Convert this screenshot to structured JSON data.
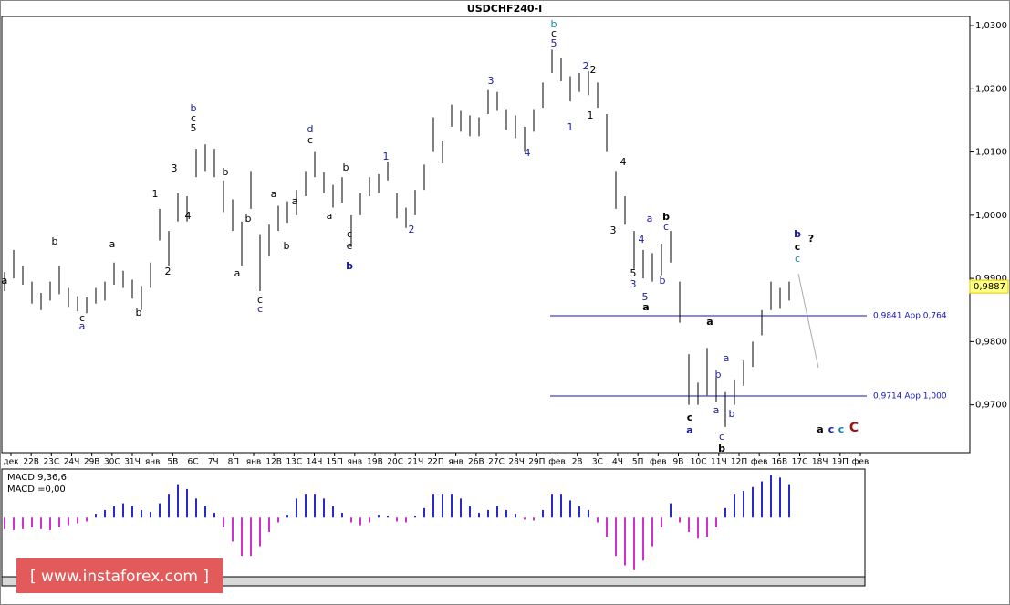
{
  "chart_data": [
    {
      "type": "ohlc",
      "title": "USDCHF240-I",
      "categories": [
        "дек",
        "22В",
        "23С",
        "24Ч",
        "29В",
        "30С",
        "31Ч",
        "янв",
        "5В",
        "6С",
        "7Ч",
        "8П",
        "янв",
        "12В",
        "13С",
        "14Ч",
        "15П",
        "янв",
        "19В",
        "20С",
        "21Ч",
        "22П",
        "янв",
        "26В",
        "27С",
        "28Ч",
        "29П",
        "фев",
        "2В",
        "3С",
        "4Ч",
        "5П",
        "фев",
        "9В",
        "10С",
        "11Ч",
        "12П",
        "фев",
        "16В",
        "17С",
        "18Ч",
        "19П",
        "фев"
      ],
      "high": [
        0.991,
        0.9945,
        0.992,
        0.9895,
        0.9877,
        0.9895,
        0.992,
        0.9885,
        0.9872,
        0.987,
        0.9885,
        0.9895,
        0.9925,
        0.9912,
        0.9898,
        0.9888,
        0.9925,
        1.001,
        0.9975,
        1.0035,
        1.003,
        1.0105,
        1.0112,
        1.0105,
        1.0055,
        1.0025,
        0.999,
        1.007,
        0.997,
        0.9985,
        1.0015,
        1.0022,
        1.004,
        1.007,
        1.01,
        1.0068,
        1.0048,
        1.006,
        1.0,
        1.0035,
        1.006,
        1.0065,
        1.0085,
        1.0035,
        1.0012,
        1.004,
        1.008,
        1.0155,
        1.0118,
        1.0175,
        1.0165,
        1.0158,
        1.0155,
        1.0198,
        1.0195,
        1.0168,
        1.0158,
        1.014,
        1.0168,
        1.021,
        1.0262,
        1.0248,
        1.022,
        1.0225,
        1.0228,
        1.021,
        1.016,
        1.007,
        1.003,
        0.9975,
        0.9945,
        0.994,
        0.9955,
        0.9975,
        0.9895,
        0.978,
        0.9735,
        0.979,
        0.9755,
        0.972,
        0.974,
        0.977,
        0.98,
        0.985,
        0.9895,
        0.9885,
        0.9895
      ],
      "low": [
        0.988,
        0.99,
        0.989,
        0.986,
        0.985,
        0.9865,
        0.9875,
        0.9855,
        0.9848,
        0.9845,
        0.986,
        0.9865,
        0.989,
        0.9885,
        0.9868,
        0.985,
        0.9885,
        0.996,
        0.992,
        0.999,
        0.999,
        1.006,
        1.007,
        1.006,
        1.0005,
        0.9975,
        0.992,
        1.001,
        0.988,
        0.9935,
        0.9975,
        0.9988,
        1.0,
        1.003,
        1.006,
        1.0035,
        1.0012,
        1.002,
        0.995,
        1.0,
        1.003,
        1.0035,
        1.0055,
        0.9995,
        0.998,
        1.0,
        1.004,
        1.01,
        1.0082,
        1.014,
        1.0132,
        1.0125,
        1.0125,
        1.016,
        1.0165,
        1.0135,
        1.0122,
        1.01,
        1.0132,
        1.017,
        1.0225,
        1.0212,
        1.018,
        1.0195,
        1.019,
        1.017,
        1.01,
        1.001,
        0.9985,
        0.9915,
        0.99,
        0.9895,
        0.9905,
        0.9925,
        0.983,
        0.97,
        0.97,
        0.9715,
        0.9705,
        0.9665,
        0.97,
        0.973,
        0.976,
        0.981,
        0.985,
        0.9852,
        0.9865
      ],
      "color": "#000000",
      "ylim": [
        0.96244,
        1.03145
      ],
      "yticks": [
        {
          "value": 0.97,
          "label": "0,9700"
        },
        {
          "value": 0.98,
          "label": "0,9800"
        },
        {
          "value": 0.99,
          "label": "0,9900"
        },
        {
          "value": 1.0,
          "label": "1,0000"
        },
        {
          "value": 1.01,
          "label": "1,0100"
        },
        {
          "value": 1.02,
          "label": "1,0200"
        },
        {
          "value": 1.03,
          "label": "1,0300"
        }
      ],
      "levels": [
        {
          "value": 0.9841,
          "label": "0,9841 Арр 0,764",
          "color": "#1414b4"
        },
        {
          "value": 0.9714,
          "label": "0,9714 Арр 1,000",
          "color": "#1414b4"
        }
      ],
      "last_price": {
        "value": 0.9887,
        "label": "0,9887"
      },
      "annotations": [
        {
          "text": "a",
          "color": "#000000",
          "bold": false
        },
        {
          "text": "c",
          "color": "#000000",
          "bold": false
        },
        {
          "text": "a",
          "color": "#1a1aa0",
          "bold": false
        },
        {
          "text": "b",
          "color": "#000000",
          "bold": false
        },
        {
          "text": "a",
          "color": "#000000",
          "bold": false
        },
        {
          "text": "b",
          "color": "#000000",
          "bold": false
        },
        {
          "text": "1",
          "color": "#000000",
          "bold": false
        },
        {
          "text": "2",
          "color": "#000000",
          "bold": false
        },
        {
          "text": "3",
          "color": "#000000",
          "bold": false
        },
        {
          "text": "4",
          "color": "#000000",
          "bold": false
        },
        {
          "text": "b",
          "color": "#1a1aa0",
          "bold": false
        },
        {
          "text": "c",
          "color": "#000000",
          "bold": false
        },
        {
          "text": "5",
          "color": "#000000",
          "bold": false
        },
        {
          "text": "b",
          "color": "#000000",
          "bold": false
        },
        {
          "text": "a",
          "color": "#000000",
          "bold": false
        },
        {
          "text": "c",
          "color": "#000000",
          "bold": false
        },
        {
          "text": "c",
          "color": "#1a1aa0",
          "bold": false
        },
        {
          "text": "b",
          "color": "#000000",
          "bold": false
        },
        {
          "text": "a",
          "color": "#000000",
          "bold": false
        },
        {
          "text": "b",
          "color": "#000000",
          "bold": false
        },
        {
          "text": "a",
          "color": "#000000",
          "bold": false
        },
        {
          "text": "d",
          "color": "#1a1aa0",
          "bold": false
        },
        {
          "text": "c",
          "color": "#000000",
          "bold": false
        },
        {
          "text": "a",
          "color": "#000000",
          "bold": false
        },
        {
          "text": "b",
          "color": "#000000",
          "bold": false
        },
        {
          "text": "c",
          "color": "#000000",
          "bold": false
        },
        {
          "text": "e",
          "color": "#000000",
          "bold": false
        },
        {
          "text": "b",
          "color": "#1a1aa0",
          "bold": true
        },
        {
          "text": "1",
          "color": "#1a1aa0",
          "bold": false
        },
        {
          "text": "2",
          "color": "#1a1aa0",
          "bold": false
        },
        {
          "text": "3",
          "color": "#1a1aa0",
          "bold": false
        },
        {
          "text": "4",
          "color": "#1a1aa0",
          "bold": false
        },
        {
          "text": "b",
          "color": "#0a86a0",
          "bold": false
        },
        {
          "text": "c",
          "color": "#000000",
          "bold": false
        },
        {
          "text": "5",
          "color": "#1a1aa0",
          "bold": false
        },
        {
          "text": "1",
          "color": "#1a1aa0",
          "bold": false
        },
        {
          "text": "2",
          "color": "#1a1aa0",
          "bold": false
        },
        {
          "text": "2",
          "color": "#000000",
          "bold": false
        },
        {
          "text": "1",
          "color": "#000000",
          "bold": false
        },
        {
          "text": "4",
          "color": "#000000",
          "bold": false
        },
        {
          "text": "3",
          "color": "#000000",
          "bold": false
        },
        {
          "text": "a",
          "color": "#1a1aa0",
          "bold": false
        },
        {
          "text": "b",
          "color": "#000000",
          "bold": true
        },
        {
          "text": "c",
          "color": "#1a1aa0",
          "bold": false
        },
        {
          "text": "4",
          "color": "#1a1aa0",
          "bold": false
        },
        {
          "text": "5",
          "color": "#000000",
          "bold": false
        },
        {
          "text": "3",
          "color": "#1a1aa0",
          "bold": false
        },
        {
          "text": "5",
          "color": "#1a1aa0",
          "bold": false
        },
        {
          "text": "a",
          "color": "#000000",
          "bold": true
        },
        {
          "text": "b",
          "color": "#1a1aa0",
          "bold": false
        },
        {
          "text": "a",
          "color": "#000000",
          "bold": true
        },
        {
          "text": "c",
          "color": "#000000",
          "bold": true
        },
        {
          "text": "a",
          "color": "#1a1aa0",
          "bold": true
        },
        {
          "text": "a",
          "color": "#1a1aa0",
          "bold": false
        },
        {
          "text": "b",
          "color": "#1a1aa0",
          "bold": false
        },
        {
          "text": "a",
          "color": "#1a1aa0",
          "bold": false
        },
        {
          "text": "b",
          "color": "#1a1aa0",
          "bold": false
        },
        {
          "text": "c",
          "color": "#1a1aa0",
          "bold": false
        },
        {
          "text": "b",
          "color": "#000000",
          "bold": true
        },
        {
          "text": "b",
          "color": "#1a1aa0",
          "bold": true
        },
        {
          "text": "c",
          "color": "#000000",
          "bold": true
        },
        {
          "text": "c",
          "color": "#0a86a0",
          "bold": false
        },
        {
          "text": "?",
          "color": "#000000",
          "bold": true
        },
        {
          "text": "a",
          "color": "#000000",
          "bold": true
        },
        {
          "text": "c",
          "color": "#1a1aa0",
          "bold": true
        },
        {
          "text": "c",
          "color": "#0a86a0",
          "bold": true
        },
        {
          "text": "C",
          "color": "#a01010",
          "bold": true
        }
      ]
    },
    {
      "type": "macd",
      "title": "MACD 9,36,6",
      "subtitle": "MACD =0,00",
      "positive_color": "#2a2ac8",
      "negative_color": "#d030d0",
      "ylim": [
        -0.006,
        0.005
      ],
      "values": [
        -0.0012,
        -0.0013,
        -0.0012,
        -0.001,
        -0.0012,
        -0.0013,
        -0.001,
        -0.0008,
        -0.0006,
        -0.0004,
        0.0004,
        0.0008,
        0.0012,
        0.0015,
        0.0012,
        0.0008,
        0.0006,
        0.0015,
        0.0025,
        0.0035,
        0.003,
        0.002,
        0.0012,
        0.0005,
        -0.001,
        -0.0025,
        -0.004,
        -0.004,
        -0.003,
        -0.0015,
        -0.0005,
        0.0003,
        0.002,
        0.0025,
        0.0025,
        0.002,
        0.0012,
        0.0005,
        -0.0005,
        -0.0008,
        -0.0005,
        0.0003,
        0.0002,
        -0.0004,
        -0.0005,
        0.0002,
        0.001,
        0.0025,
        0.0025,
        0.0025,
        0.002,
        0.0012,
        0.0005,
        0.0008,
        0.0012,
        0.0008,
        0.0004,
        -0.0002,
        -0.0003,
        0.0008,
        0.0025,
        0.0025,
        0.0018,
        0.0012,
        0.0008,
        -0.0005,
        -0.002,
        -0.004,
        -0.005,
        -0.0055,
        -0.0045,
        -0.003,
        -0.001,
        0.0015,
        -0.0005,
        -0.0015,
        -0.0022,
        -0.002,
        -0.001,
        0.001,
        0.0025,
        0.0028,
        0.0032,
        0.0038,
        0.0045,
        0.0042,
        0.0035
      ]
    }
  ],
  "watermark": "[ www.instaforex.com ]"
}
